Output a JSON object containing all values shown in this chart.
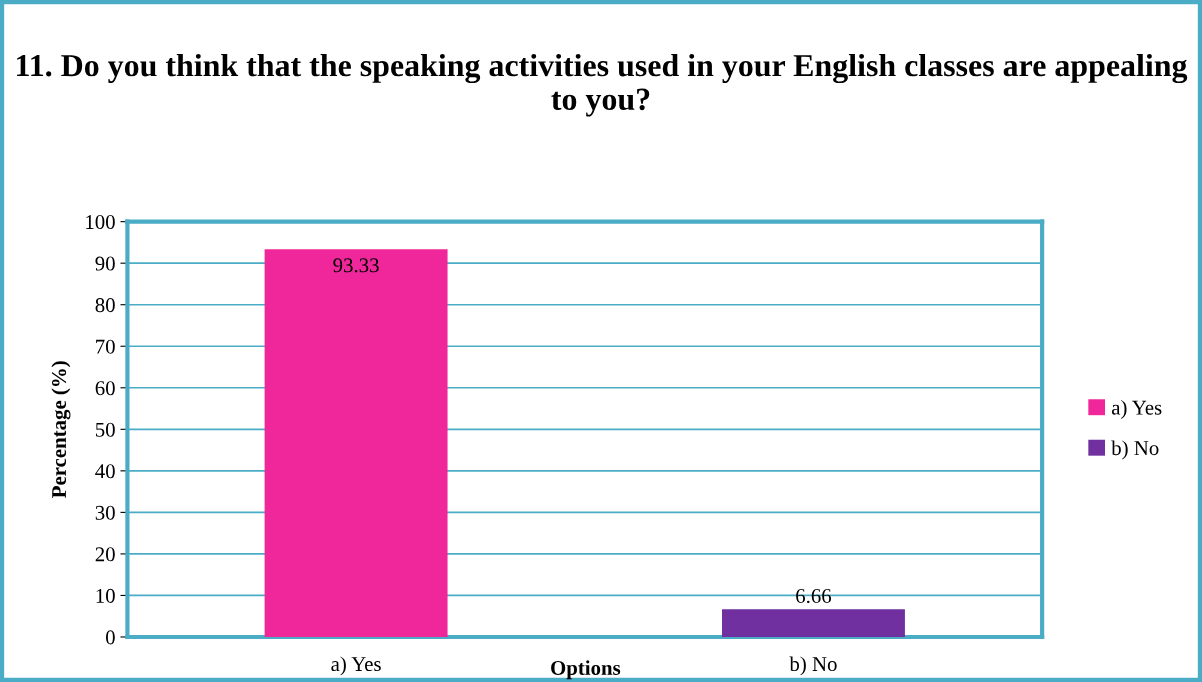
{
  "chart_data": {
    "type": "bar",
    "title": "11. Do you think that the speaking activities used in your English classes are appealing to you?",
    "xlabel": "Options",
    "ylabel": "Percentage (%)",
    "categories": [
      "a) Yes",
      "b) No"
    ],
    "series": [
      {
        "name": "a) Yes",
        "color": "#f0279b",
        "values": [
          93.33,
          null
        ]
      },
      {
        "name": "b) No",
        "color": "#7030a0",
        "values": [
          null,
          6.66
        ]
      }
    ],
    "ylim": [
      0,
      100
    ],
    "yticks": [
      0,
      10,
      20,
      30,
      40,
      50,
      60,
      70,
      80,
      90,
      100
    ],
    "grid": "y",
    "legend": "right",
    "data_labels": true
  }
}
